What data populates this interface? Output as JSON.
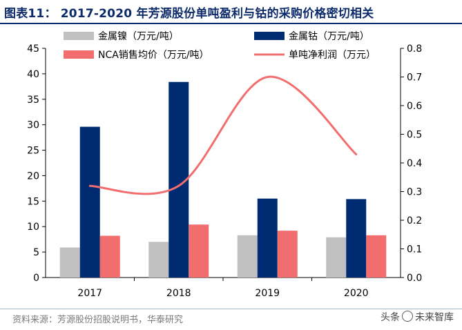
{
  "header": {
    "title": "图表11：   2017-2020 年芳源股份单吨盈利与钴的采购价格密切相关"
  },
  "footer": {
    "source": "资料来源：芳源股份招股说明书，华泰研究",
    "watermark_left": "头条",
    "watermark_right": "未来智库"
  },
  "chart_data": {
    "type": "bar",
    "categories": [
      "2017",
      "2018",
      "2019",
      "2020"
    ],
    "series": [
      {
        "name": "金属镍（万元/吨）",
        "type": "bar",
        "axis": "left",
        "color": "#c0c0c0",
        "values": [
          5.9,
          7.0,
          8.3,
          7.9
        ]
      },
      {
        "name": "金属钴（万元/吨）",
        "type": "bar",
        "axis": "left",
        "color": "#002b73",
        "values": [
          29.6,
          38.4,
          15.5,
          15.4
        ]
      },
      {
        "name": "NCA销售均价（万元/吨）",
        "type": "bar",
        "axis": "left",
        "color": "#f26d6d",
        "values": [
          8.2,
          10.4,
          9.2,
          8.3
        ]
      },
      {
        "name": "单吨净利润（万元）",
        "type": "line",
        "axis": "right",
        "color": "#f26d6d",
        "values": [
          0.32,
          0.32,
          0.7,
          0.43
        ]
      }
    ],
    "y_left": {
      "min": 0,
      "max": 45,
      "ticks": [
        "0",
        "5",
        "10",
        "15",
        "20",
        "25",
        "30",
        "35",
        "40",
        "45"
      ]
    },
    "y_right": {
      "min": 0,
      "max": 0.8,
      "ticks": [
        "0.0",
        "0.1",
        "0.2",
        "0.3",
        "0.4",
        "0.5",
        "0.6",
        "0.7",
        "0.8"
      ]
    },
    "legend_position": "top",
    "grid": false
  }
}
